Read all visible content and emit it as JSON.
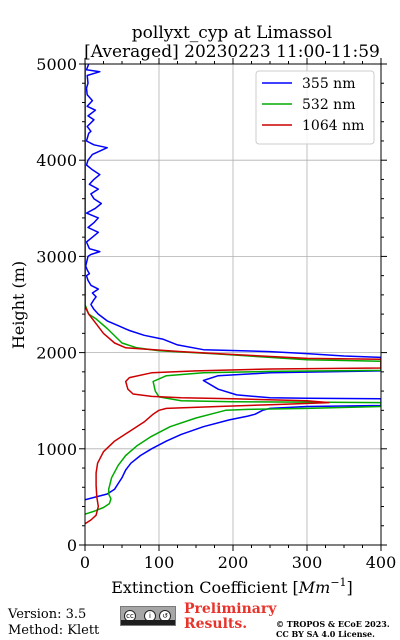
{
  "chart_data": {
    "type": "line",
    "title": "pollyxt_cyp at Limassol",
    "subtitle": "[Averaged] 20230223 11:00-11:59",
    "xlabel": "Extinction Coefficient [",
    "xlabel_unit": "Mm",
    "xlabel_exp": "−1",
    "xlabel_close": "]",
    "ylabel": "Height (m)",
    "xlim": [
      0,
      400
    ],
    "ylim": [
      0,
      5000
    ],
    "xticks": [
      0,
      100,
      200,
      300,
      400
    ],
    "yticks": [
      0,
      1000,
      2000,
      3000,
      4000,
      5000
    ],
    "grid": true,
    "legend_position": "top-right",
    "series": [
      {
        "name": "355 nm",
        "color": "#0000ff",
        "points": [
          [
            0,
            470
          ],
          [
            15,
            500
          ],
          [
            30,
            530
          ],
          [
            40,
            580
          ],
          [
            45,
            640
          ],
          [
            50,
            700
          ],
          [
            55,
            780
          ],
          [
            62,
            850
          ],
          [
            75,
            930
          ],
          [
            90,
            1000
          ],
          [
            110,
            1080
          ],
          [
            130,
            1150
          ],
          [
            160,
            1230
          ],
          [
            195,
            1300
          ],
          [
            220,
            1340
          ],
          [
            230,
            1360
          ],
          [
            240,
            1400
          ],
          [
            250,
            1420
          ],
          [
            300,
            1440
          ],
          [
            400,
            1450
          ],
          [
            400,
            1520
          ],
          [
            300,
            1525
          ],
          [
            250,
            1530
          ],
          [
            205,
            1560
          ],
          [
            180,
            1620
          ],
          [
            160,
            1710
          ],
          [
            180,
            1760
          ],
          [
            250,
            1790
          ],
          [
            330,
            1800
          ],
          [
            400,
            1810
          ],
          [
            400,
            1950
          ],
          [
            350,
            1965
          ],
          [
            300,
            1990
          ],
          [
            250,
            2010
          ],
          [
            160,
            2030
          ],
          [
            125,
            2080
          ],
          [
            105,
            2140
          ],
          [
            80,
            2180
          ],
          [
            60,
            2230
          ],
          [
            45,
            2280
          ],
          [
            30,
            2330
          ],
          [
            18,
            2400
          ],
          [
            12,
            2450
          ],
          [
            8,
            2500
          ],
          [
            12,
            2550
          ],
          [
            15,
            2580
          ],
          [
            10,
            2620
          ],
          [
            18,
            2660
          ],
          [
            8,
            2700
          ],
          [
            4,
            2750
          ],
          [
            2,
            2800
          ],
          [
            6,
            2820
          ],
          [
            3,
            2860
          ],
          [
            1,
            2900
          ],
          [
            4,
            3000
          ],
          [
            8,
            3020
          ],
          [
            20,
            3050
          ],
          [
            6,
            3080
          ],
          [
            2,
            3150
          ],
          [
            10,
            3200
          ],
          [
            18,
            3250
          ],
          [
            4,
            3300
          ],
          [
            12,
            3350
          ],
          [
            18,
            3400
          ],
          [
            2,
            3450
          ],
          [
            14,
            3500
          ],
          [
            22,
            3550
          ],
          [
            12,
            3600
          ],
          [
            8,
            3650
          ],
          [
            18,
            3700
          ],
          [
            6,
            3750
          ],
          [
            12,
            3800
          ],
          [
            20,
            3850
          ],
          [
            10,
            3900
          ],
          [
            2,
            3950
          ],
          [
            4,
            4000
          ],
          [
            10,
            4060
          ],
          [
            30,
            4130
          ],
          [
            12,
            4160
          ],
          [
            2,
            4200
          ],
          [
            5,
            4280
          ],
          [
            8,
            4300
          ],
          [
            3,
            4350
          ],
          [
            12,
            4420
          ],
          [
            4,
            4460
          ],
          [
            14,
            4520
          ],
          [
            3,
            4560
          ],
          [
            10,
            4620
          ],
          [
            3,
            4680
          ],
          [
            2,
            4750
          ],
          [
            4,
            4800
          ],
          [
            3,
            4880
          ],
          [
            20,
            4920
          ],
          [
            2,
            4940
          ],
          [
            5,
            5000
          ]
        ]
      },
      {
        "name": "532 nm",
        "color": "#00aa00",
        "points": [
          [
            0,
            320
          ],
          [
            12,
            350
          ],
          [
            25,
            390
          ],
          [
            33,
            430
          ],
          [
            35,
            480
          ],
          [
            32,
            530
          ],
          [
            32,
            580
          ],
          [
            36,
            700
          ],
          [
            45,
            830
          ],
          [
            55,
            930
          ],
          [
            70,
            1030
          ],
          [
            90,
            1130
          ],
          [
            115,
            1230
          ],
          [
            150,
            1320
          ],
          [
            175,
            1370
          ],
          [
            190,
            1400
          ],
          [
            220,
            1410
          ],
          [
            300,
            1420
          ],
          [
            400,
            1440
          ],
          [
            400,
            1480
          ],
          [
            300,
            1485
          ],
          [
            200,
            1490
          ],
          [
            130,
            1500
          ],
          [
            100,
            1540
          ],
          [
            95,
            1600
          ],
          [
            92,
            1700
          ],
          [
            110,
            1760
          ],
          [
            160,
            1790
          ],
          [
            250,
            1805
          ],
          [
            400,
            1815
          ],
          [
            400,
            1910
          ],
          [
            300,
            1925
          ],
          [
            250,
            1950
          ],
          [
            180,
            1985
          ],
          [
            100,
            2020
          ],
          [
            70,
            2050
          ],
          [
            50,
            2100
          ],
          [
            30,
            2250
          ],
          [
            15,
            2350
          ],
          [
            5,
            2400
          ],
          [
            0,
            2500
          ],
          [
            0,
            5000
          ]
        ]
      },
      {
        "name": "1064 nm",
        "color": "#cc0000",
        "points": [
          [
            0,
            220
          ],
          [
            8,
            260
          ],
          [
            15,
            310
          ],
          [
            18,
            400
          ],
          [
            16,
            500
          ],
          [
            15,
            620
          ],
          [
            15,
            750
          ],
          [
            17,
            850
          ],
          [
            25,
            970
          ],
          [
            40,
            1080
          ],
          [
            60,
            1180
          ],
          [
            80,
            1280
          ],
          [
            92,
            1360
          ],
          [
            100,
            1400
          ],
          [
            110,
            1420
          ],
          [
            180,
            1440
          ],
          [
            260,
            1460
          ],
          [
            330,
            1480
          ],
          [
            300,
            1500
          ],
          [
            200,
            1520
          ],
          [
            130,
            1530
          ],
          [
            90,
            1545
          ],
          [
            65,
            1570
          ],
          [
            58,
            1620
          ],
          [
            55,
            1700
          ],
          [
            60,
            1740
          ],
          [
            90,
            1790
          ],
          [
            150,
            1810
          ],
          [
            250,
            1830
          ],
          [
            400,
            1840
          ],
          [
            400,
            1930
          ],
          [
            300,
            1940
          ],
          [
            200,
            1980
          ],
          [
            130,
            2010
          ],
          [
            55,
            2050
          ],
          [
            40,
            2100
          ],
          [
            25,
            2200
          ],
          [
            15,
            2300
          ],
          [
            5,
            2400
          ],
          [
            0,
            2480
          ],
          [
            0,
            5000
          ]
        ]
      }
    ]
  },
  "footer": {
    "version": "Version: 3.5",
    "method": "Method: Klett",
    "preliminary_line1": "Preliminary",
    "preliminary_line2": "Results.",
    "copyright_line1": "© TROPOS & ECoE 2023.",
    "copyright_line2": "CC BY SA 4.0 License.",
    "license_badge_icon": "cc-by-sa-icon"
  }
}
